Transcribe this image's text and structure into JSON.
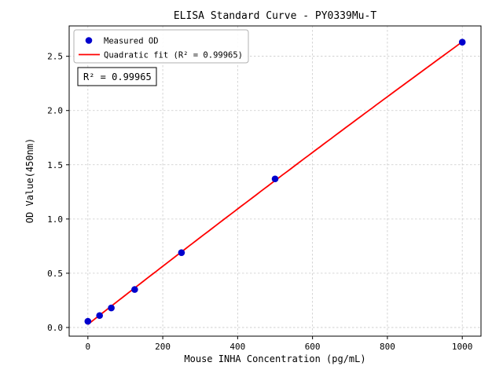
{
  "chart_data": {
    "type": "scatter",
    "title": "ELISA Standard Curve - PY0339Mu-T",
    "xlabel": "Mouse INHA Concentration (pg/mL)",
    "ylabel": "OD Value(450nm)",
    "xlim": [
      -50,
      1050
    ],
    "ylim": [
      -0.08,
      2.78
    ],
    "xticks": [
      0,
      200,
      400,
      600,
      800,
      1000
    ],
    "yticks": [
      0.0,
      0.5,
      1.0,
      1.5,
      2.0,
      2.5
    ],
    "grid": true,
    "legend_position": "upper left",
    "annotation": "R² = 0.99965",
    "series": [
      {
        "name": "Measured OD",
        "kind": "scatter",
        "color": "#0000cd",
        "x": [
          0,
          31.25,
          62.5,
          125,
          250,
          500,
          1000
        ],
        "y": [
          0.057,
          0.11,
          0.18,
          0.35,
          0.69,
          1.37,
          2.63
        ]
      },
      {
        "name": "Quadratic fit (R² = 0.99965)",
        "kind": "quadratic-fit-line",
        "color": "#ff0000"
      }
    ]
  }
}
